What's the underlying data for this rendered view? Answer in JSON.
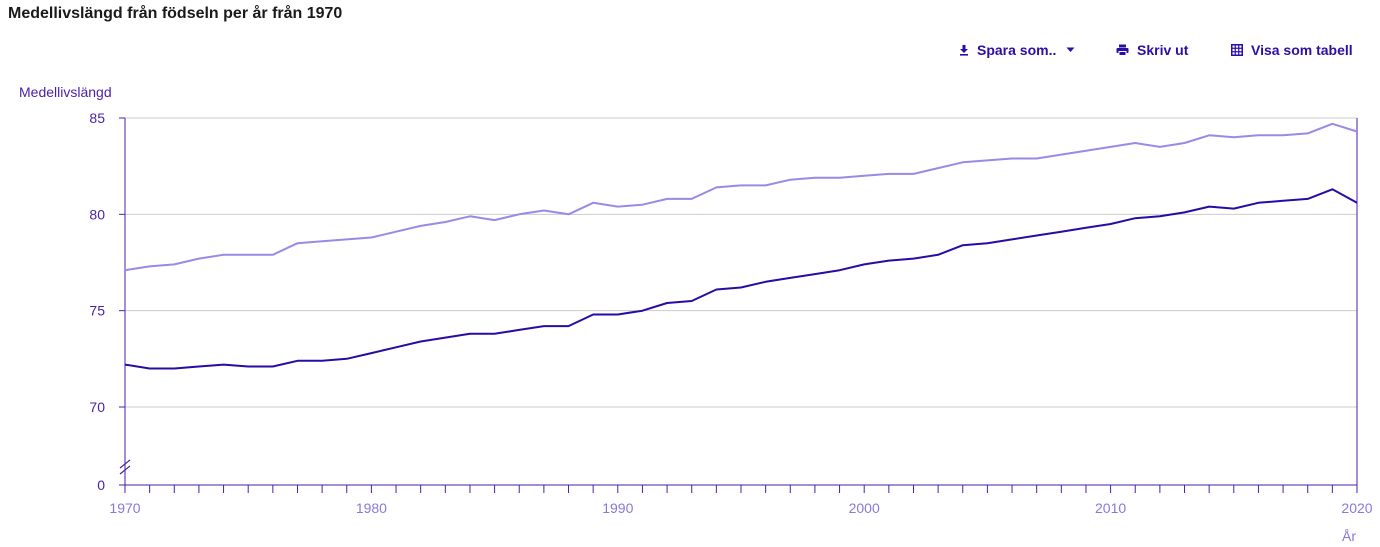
{
  "page": {
    "title": "Medellivslängd från födseln per år från 1970"
  },
  "toolbar": {
    "save_label": "Spara som..",
    "print_label": "Skriv ut",
    "table_label": "Visa som tabell",
    "save_icon": "download-icon",
    "print_icon": "printer-icon",
    "table_icon": "table-grid-icon",
    "caret_icon": "caret-down-icon"
  },
  "colors": {
    "accent": "#2c0da6",
    "series_dark": "#2a0aa5",
    "series_light": "#9a8ae6",
    "axis": "#4a1fa8",
    "x_tick_text": "#8a78d8",
    "grid": "#cccccc"
  },
  "chart_data": {
    "type": "line",
    "ylabel": "Medellivslängd",
    "xlabel": "År",
    "ylim": [
      0,
      85
    ],
    "y_ticks": [
      0,
      70,
      75,
      80,
      85
    ],
    "y_axis_break": true,
    "xlim": [
      1970,
      2020
    ],
    "x_ticks": [
      1970,
      1980,
      1990,
      2000,
      2010,
      2020
    ],
    "grid": "horizontal",
    "x": [
      1970,
      1971,
      1972,
      1973,
      1974,
      1975,
      1976,
      1977,
      1978,
      1979,
      1980,
      1981,
      1982,
      1983,
      1984,
      1985,
      1986,
      1987,
      1988,
      1989,
      1990,
      1991,
      1992,
      1993,
      1994,
      1995,
      1996,
      1997,
      1998,
      1999,
      2000,
      2001,
      2002,
      2003,
      2004,
      2005,
      2006,
      2007,
      2008,
      2009,
      2010,
      2011,
      2012,
      2013,
      2014,
      2015,
      2016,
      2017,
      2018,
      2019,
      2020
    ],
    "series": [
      {
        "color": "#9a8ae6",
        "values": [
          77.1,
          77.3,
          77.4,
          77.7,
          77.9,
          77.9,
          77.9,
          78.5,
          78.6,
          78.7,
          78.8,
          79.1,
          79.4,
          79.6,
          79.9,
          79.7,
          80.0,
          80.2,
          80.0,
          80.6,
          80.4,
          80.5,
          80.8,
          80.8,
          81.4,
          81.5,
          81.5,
          81.8,
          81.9,
          81.9,
          82.0,
          82.1,
          82.1,
          82.4,
          82.7,
          82.8,
          82.9,
          82.9,
          83.1,
          83.3,
          83.5,
          83.7,
          83.5,
          83.7,
          84.1,
          84.0,
          84.1,
          84.1,
          84.2,
          84.7,
          84.3
        ]
      },
      {
        "color": "#2a0aa5",
        "values": [
          72.2,
          72.0,
          72.0,
          72.1,
          72.2,
          72.1,
          72.1,
          72.4,
          72.4,
          72.5,
          72.8,
          73.1,
          73.4,
          73.6,
          73.8,
          73.8,
          74.0,
          74.2,
          74.2,
          74.8,
          74.8,
          75.0,
          75.4,
          75.5,
          76.1,
          76.2,
          76.5,
          76.7,
          76.9,
          77.1,
          77.4,
          77.6,
          77.7,
          77.9,
          78.4,
          78.5,
          78.7,
          78.9,
          79.1,
          79.3,
          79.5,
          79.8,
          79.9,
          80.1,
          80.4,
          80.3,
          80.6,
          80.7,
          80.8,
          81.3,
          80.6
        ]
      }
    ]
  }
}
